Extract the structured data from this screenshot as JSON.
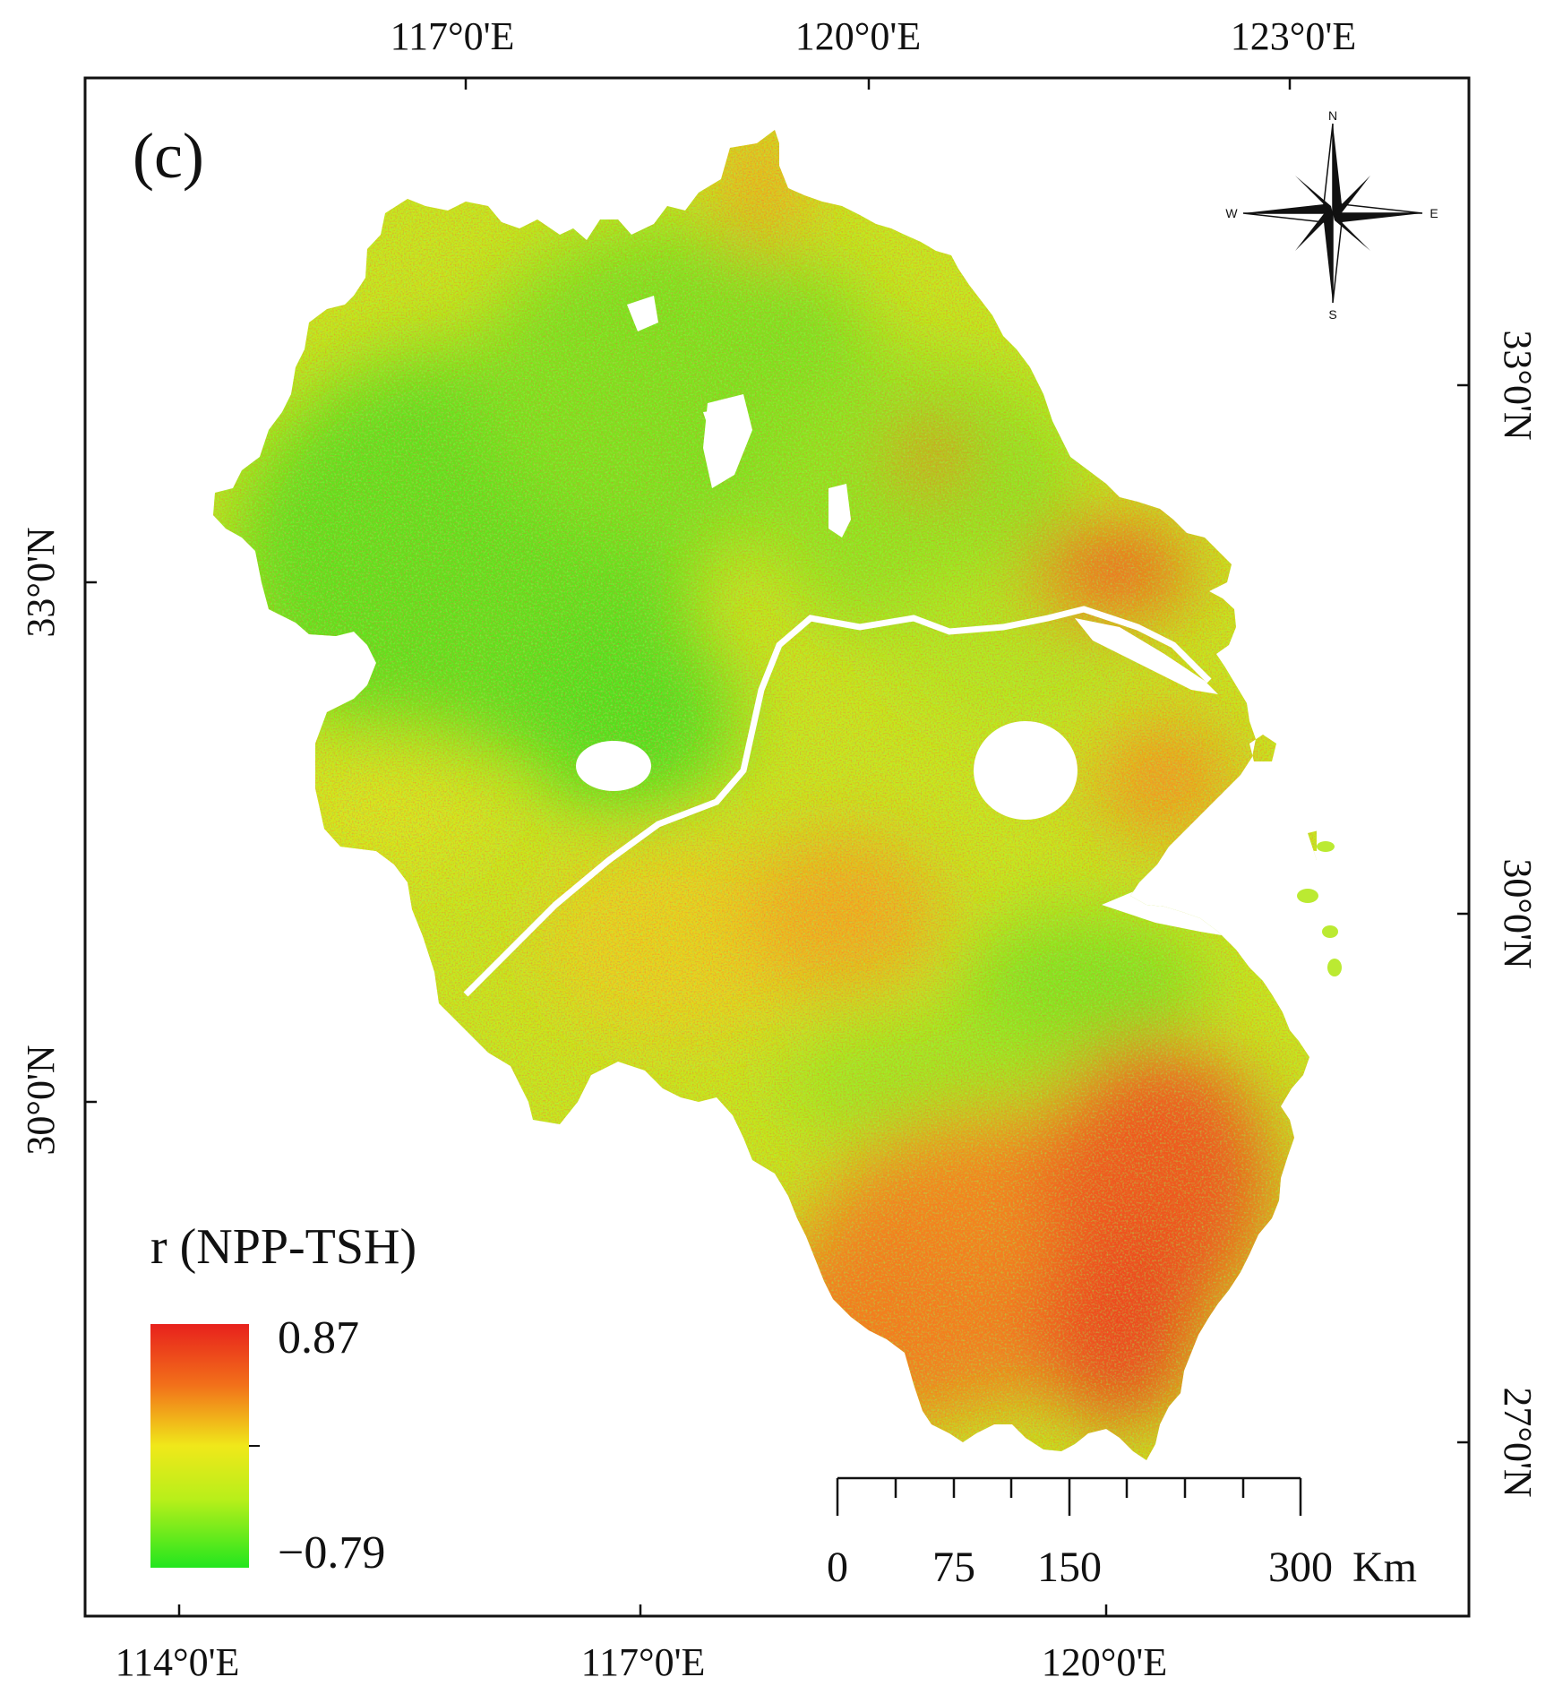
{
  "panel_label": "(c)",
  "top_lon_labels": [
    "117°0'E",
    "120°0'E",
    "123°0'E"
  ],
  "bottom_lon_labels": [
    "114°0'E",
    "117°0'E",
    "120°0'E"
  ],
  "left_lat_labels": [
    "33°0'N",
    "30°0'N"
  ],
  "right_lat_labels": [
    "33°0'N",
    "30°0'N",
    "27°0'N"
  ],
  "legend": {
    "title": "r (NPP-TSH)",
    "max_label": "0.87",
    "min_label": "−0.79",
    "max_value": 0.87,
    "min_value": -0.79,
    "color_max": "#e8211c",
    "color_mid": "#f0e81a",
    "color_min": "#22e61e"
  },
  "north_arrow": {
    "n": "N",
    "s": "S",
    "e": "E",
    "w": "W"
  },
  "scale_bar": {
    "labels": [
      "0",
      "75",
      "150",
      "300"
    ],
    "unit": "Km"
  },
  "colors": {
    "frame": "#111111",
    "water": "#ffffff",
    "high": "#e8211c",
    "mid_high": "#f28a1c",
    "mid": "#f0e81a",
    "mid_low": "#a8ee1a",
    "low": "#22e61e"
  }
}
